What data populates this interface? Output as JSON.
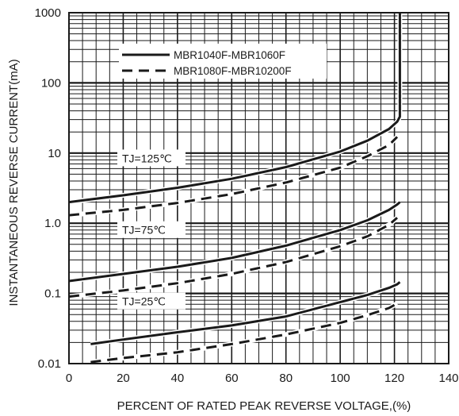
{
  "chart_data": {
    "type": "line",
    "xlabel": "PERCENT OF RATED PEAK REVERSE VOLTAGE,(%)",
    "ylabel": "INSTANTANEOUS REVERSE CURRENT(mA)",
    "xlim": [
      0,
      140
    ],
    "ylim": [
      0.01,
      1000
    ],
    "yscale": "log",
    "grid": true,
    "x_ticks": [
      "0",
      "20",
      "40",
      "60",
      "80",
      "100",
      "120",
      "140"
    ],
    "y_ticks": [
      "0.01",
      "0.1",
      "1.0",
      "10",
      "100",
      "1000"
    ],
    "legend_position": "top-left",
    "series_styles": {
      "solid": "MBR1040F-MBR1060F",
      "dashed": "MBR1080F-MBR10200F"
    },
    "series": [
      {
        "name": "MBR1040F-MBR1060F",
        "temperature": "TJ=125℃",
        "style": "solid",
        "x": [
          0,
          20,
          40,
          60,
          80,
          100,
          110,
          118,
          121,
          122,
          122,
          122
        ],
        "y": [
          2.0,
          2.5,
          3.2,
          4.3,
          6.3,
          10.5,
          15,
          22,
          28,
          33,
          300,
          1000
        ]
      },
      {
        "name": "MBR1080F-MBR10200F",
        "temperature": "TJ=125℃",
        "style": "dashed",
        "x": [
          0,
          20,
          40,
          60,
          80,
          100,
          110,
          118,
          121
        ],
        "y": [
          1.3,
          1.55,
          1.95,
          2.6,
          3.8,
          6.2,
          9,
          13,
          17
        ]
      },
      {
        "name": "MBR1040F-MBR1060F",
        "temperature": "TJ=75℃",
        "style": "solid",
        "x": [
          0,
          20,
          40,
          60,
          80,
          100,
          110,
          118,
          121,
          122
        ],
        "y": [
          0.15,
          0.19,
          0.24,
          0.32,
          0.48,
          0.8,
          1.1,
          1.55,
          1.85,
          2.0
        ]
      },
      {
        "name": "MBR1080F-MBR10200F",
        "temperature": "TJ=75℃",
        "style": "dashed",
        "x": [
          0,
          20,
          40,
          60,
          80,
          100,
          110,
          118,
          121
        ],
        "y": [
          0.09,
          0.11,
          0.14,
          0.19,
          0.28,
          0.47,
          0.65,
          0.95,
          1.2
        ]
      },
      {
        "name": "MBR1040F-MBR1060F",
        "temperature": "TJ=25℃",
        "style": "solid",
        "x": [
          8,
          20,
          40,
          60,
          80,
          100,
          110,
          118,
          121,
          122
        ],
        "y": [
          0.019,
          0.022,
          0.028,
          0.035,
          0.047,
          0.075,
          0.095,
          0.12,
          0.135,
          0.145
        ]
      },
      {
        "name": "MBR1080F-MBR10200F",
        "temperature": "TJ=25℃",
        "style": "dashed",
        "x": [
          8,
          20,
          40,
          60,
          80,
          100,
          110,
          118,
          121
        ],
        "y": [
          0.0105,
          0.012,
          0.0145,
          0.019,
          0.026,
          0.038,
          0.049,
          0.062,
          0.072
        ]
      }
    ],
    "annotations": [
      "TJ=125℃",
      "TJ=75℃",
      "TJ=25℃"
    ]
  }
}
